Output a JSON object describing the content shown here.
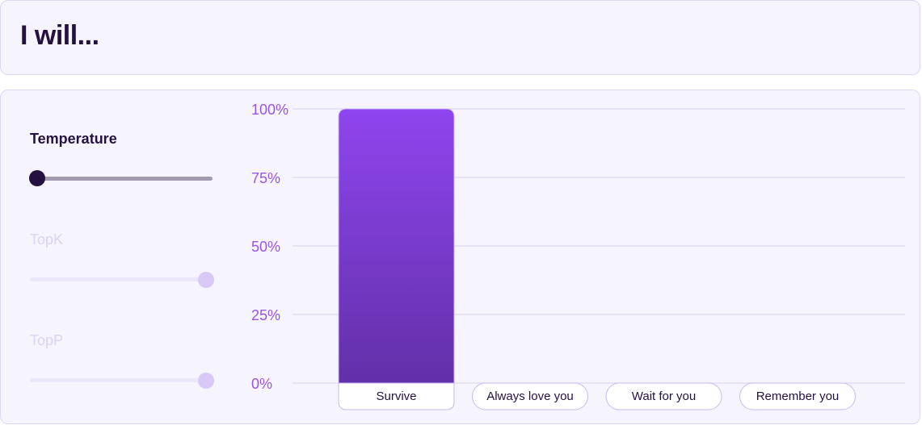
{
  "header": {
    "title": "I will..."
  },
  "controls": {
    "temperature": {
      "label": "Temperature",
      "value": 0.0,
      "enabled": true
    },
    "topk": {
      "label": "TopK",
      "value": 1.0,
      "enabled": false
    },
    "topp": {
      "label": "TopP",
      "value": 1.0,
      "enabled": false
    }
  },
  "colors": {
    "accent": "#9a55e0",
    "bar_top": "#8f45ee",
    "bar_bottom": "#6230a8",
    "text_dark": "#23123f"
  },
  "chart_data": {
    "type": "bar",
    "categories": [
      "Survive",
      "Always love you",
      "Wait for you",
      "Remember you"
    ],
    "values": [
      100,
      0,
      0,
      0
    ],
    "yticks": [
      "100%",
      "75%",
      "50%",
      "25%",
      "0%"
    ],
    "ylim": [
      0,
      100
    ],
    "title": "",
    "xlabel": "",
    "ylabel": "",
    "grid": true
  }
}
